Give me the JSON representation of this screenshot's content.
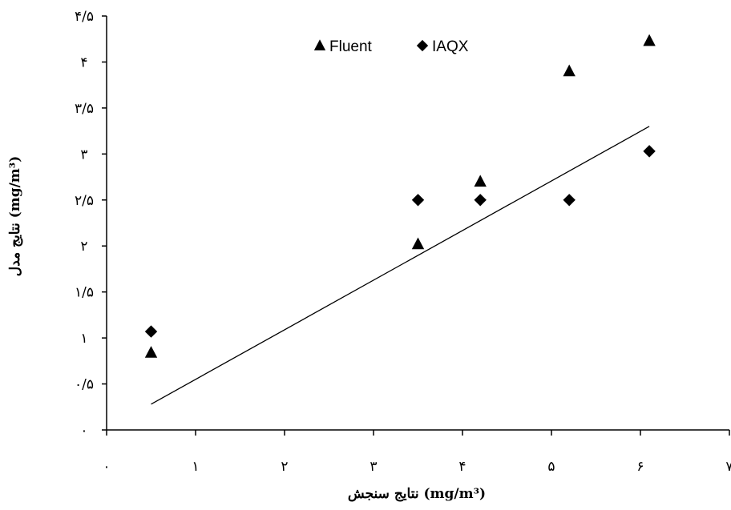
{
  "chart_data": {
    "type": "scatter",
    "title": "",
    "xlabel": "نتایج سنجش  (mg/m³)",
    "ylabel": "نتایج مدل  (mg/m³)",
    "xlim": [
      0,
      7
    ],
    "ylim": [
      0,
      4.5
    ],
    "x_ticks": [
      0,
      1,
      2,
      3,
      4,
      5,
      6,
      7
    ],
    "x_tick_labels": [
      "۰",
      "۱",
      "۲",
      "۳",
      "۴",
      "۵",
      "۶",
      "۷"
    ],
    "y_ticks": [
      0,
      0.5,
      1,
      1.5,
      2,
      2.5,
      3,
      3.5,
      4,
      4.5
    ],
    "y_tick_labels": [
      "۰",
      "۰/۵",
      "۱",
      "۱/۵",
      "۲",
      "۲/۵",
      "۳",
      "۳/۵",
      "۴",
      "۴/۵"
    ],
    "grid": false,
    "legend_position": "top-center",
    "series": [
      {
        "name": "Fluent",
        "marker": "triangle",
        "color": "#000000",
        "points": [
          {
            "x": 0.5,
            "y": 0.84
          },
          {
            "x": 3.5,
            "y": 2.02
          },
          {
            "x": 4.2,
            "y": 2.7
          },
          {
            "x": 5.2,
            "y": 3.9
          },
          {
            "x": 6.1,
            "y": 4.23
          }
        ]
      },
      {
        "name": "IAQX",
        "marker": "diamond",
        "color": "#000000",
        "points": [
          {
            "x": 0.5,
            "y": 1.07
          },
          {
            "x": 3.5,
            "y": 2.5
          },
          {
            "x": 4.2,
            "y": 2.5
          },
          {
            "x": 5.2,
            "y": 2.5
          },
          {
            "x": 6.1,
            "y": 3.03
          }
        ]
      }
    ],
    "trendline": {
      "from": {
        "x": 0.5,
        "y": 0.28
      },
      "to": {
        "x": 6.1,
        "y": 3.3
      },
      "color": "#000000"
    }
  }
}
